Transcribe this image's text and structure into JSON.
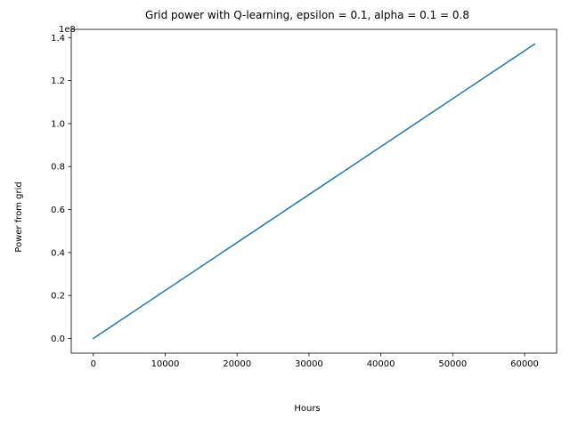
{
  "chart_data": {
    "type": "line",
    "title": "Grid power with Q-learning, epsilon = 0.1, alpha = 0.1 = 0.8",
    "xlabel": "Hours",
    "ylabel": "Power from grid",
    "y_offset_label": "1e8",
    "xlim": [
      -3070,
      64460
    ],
    "ylim": [
      -6850000,
      143850000
    ],
    "xticks": [
      0,
      10000,
      20000,
      30000,
      40000,
      50000,
      60000
    ],
    "xtick_labels": [
      "0",
      "10000",
      "20000",
      "30000",
      "40000",
      "50000",
      "60000"
    ],
    "yticks": [
      0,
      20000000,
      40000000,
      60000000,
      80000000,
      100000000,
      120000000,
      140000000
    ],
    "ytick_labels": [
      "0.0",
      "0.2",
      "0.4",
      "0.6",
      "0.8",
      "1.0",
      "1.2",
      "1.4"
    ],
    "grid": false,
    "series": [
      {
        "color": "#1f77b4",
        "x": [
          0,
          61390
        ],
        "y": [
          0,
          137000000
        ]
      }
    ]
  }
}
